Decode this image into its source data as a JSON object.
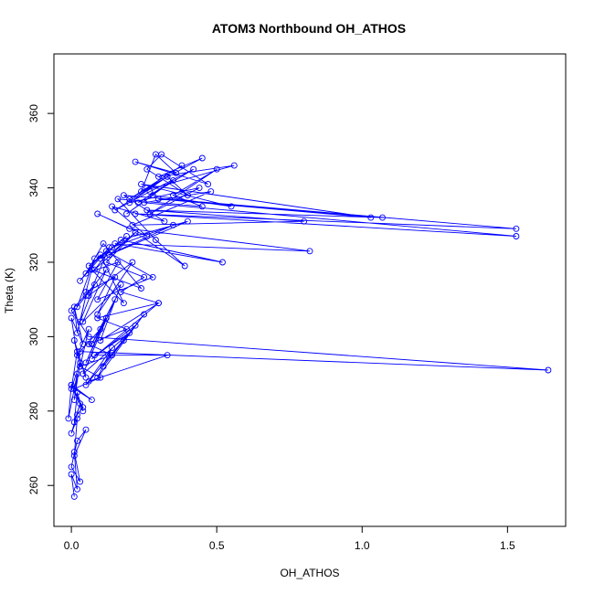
{
  "chart_data": {
    "type": "scatter",
    "mode": "lines+markers",
    "title": "ATOM3 Northbound OH_ATHOS",
    "xlabel": "OH_ATHOS",
    "ylabel": "Theta (K)",
    "xlim": [
      -0.06,
      1.7
    ],
    "ylim": [
      249,
      376
    ],
    "xticks": [
      0.0,
      0.5,
      1.0,
      1.5
    ],
    "xtick_labels": [
      "0.0",
      "0.5",
      "1.0",
      "1.5"
    ],
    "yticks": [
      260,
      280,
      300,
      320,
      340,
      360
    ],
    "ytick_labels": [
      "260",
      "280",
      "300",
      "320",
      "340",
      "360"
    ],
    "grid": false,
    "legend": "none",
    "color": "#0000ff",
    "series": [
      {
        "x": [
          0.01,
          0.0,
          0.02,
          0.01,
          0.03,
          0.0,
          0.02,
          0.05,
          0.01,
          0.02,
          0.0,
          0.03,
          0.01,
          0.02,
          0.04,
          0.0,
          -0.01,
          0.02,
          0.01,
          0.03,
          0.0,
          0.02,
          0.05,
          0.01,
          0.03,
          0.06,
          0.02,
          0.0,
          0.04,
          0.01,
          0.02,
          0.05,
          0.03,
          0.08,
          0.0,
          0.06,
          1.64,
          0.03,
          0.1,
          0.05,
          0.12,
          0.07,
          0.15,
          0.04,
          0.2,
          0.08,
          0.33,
          0.06,
          0.18,
          0.11,
          0.25,
          0.09,
          0.14,
          0.05,
          0.22,
          0.07,
          0.3,
          0.1,
          0.17,
          0.04,
          0.12,
          0.02,
          0.08,
          0.05,
          0.15,
          0.09,
          0.21,
          0.06,
          0.13,
          0.03,
          0.1,
          0.18,
          0.07,
          0.24,
          0.11,
          0.05,
          0.16,
          0.09,
          0.28,
          0.12,
          0.06,
          0.19,
          0.1,
          0.35,
          0.14,
          0.08,
          0.22,
          0.13,
          0.4,
          0.17,
          0.52,
          0.15,
          0.82,
          0.2,
          0.09,
          0.26,
          0.14,
          0.32,
          0.18,
          1.53,
          0.22,
          1.53,
          0.25,
          0.48,
          0.21,
          0.8,
          0.26,
          1.07,
          0.3,
          1.03,
          0.24,
          0.55,
          0.28,
          0.19,
          0.35,
          0.23,
          0.42,
          0.27,
          0.15,
          0.33,
          0.2,
          0.38,
          0.26,
          0.45,
          0.3,
          0.56,
          0.24,
          0.29,
          0.36,
          0.22,
          0.47,
          0.31,
          0.26,
          0.4,
          0.33,
          0.2,
          0.44,
          0.27,
          0.5,
          0.35,
          0.45,
          0.16,
          0.29,
          0.39,
          0.22,
          0.12,
          0.25,
          0.17,
          0.3,
          0.09,
          0.19,
          0.06,
          0.14,
          0.03,
          0.1,
          0.01,
          0.07,
          0.0,
          0.04,
          0.02
        ],
        "y": [
          257,
          263,
          259,
          269,
          261,
          265,
          272,
          275,
          268,
          278,
          274,
          282,
          277,
          285,
          280,
          287,
          278,
          290,
          283,
          293,
          286,
          296,
          289,
          299,
          292,
          302,
          295,
          305,
          298,
          308,
          301,
          311,
          304,
          314,
          307,
          300,
          291,
          296,
          302,
          293,
          305,
          298,
          310,
          290,
          301,
          295,
          295,
          288,
          299,
          292,
          306,
          289,
          297,
          287,
          303,
          294,
          309,
          299,
          314,
          304,
          318,
          308,
          321,
          312,
          316,
          306,
          320,
          311,
          324,
          315,
          322,
          309,
          318,
          313,
          325,
          317,
          320,
          310,
          316,
          323,
          319,
          327,
          321,
          330,
          324,
          318,
          328,
          322,
          331,
          326,
          320,
          325,
          323,
          329,
          333,
          327,
          335,
          331,
          338,
          329,
          333,
          327,
          336,
          339,
          330,
          331,
          334,
          332,
          337,
          332,
          341,
          335,
          338,
          333,
          342,
          336,
          345,
          339,
          334,
          343,
          337,
          346,
          340,
          348,
          343,
          346,
          339,
          349,
          344,
          347,
          341,
          349,
          345,
          338,
          343,
          336,
          340,
          333,
          345,
          338,
          335,
          337,
          326,
          319,
          328,
          320,
          316,
          312,
          309,
          305,
          302,
          298,
          295,
          292,
          289,
          286,
          283,
          287,
          281,
          279
        ]
      }
    ]
  }
}
